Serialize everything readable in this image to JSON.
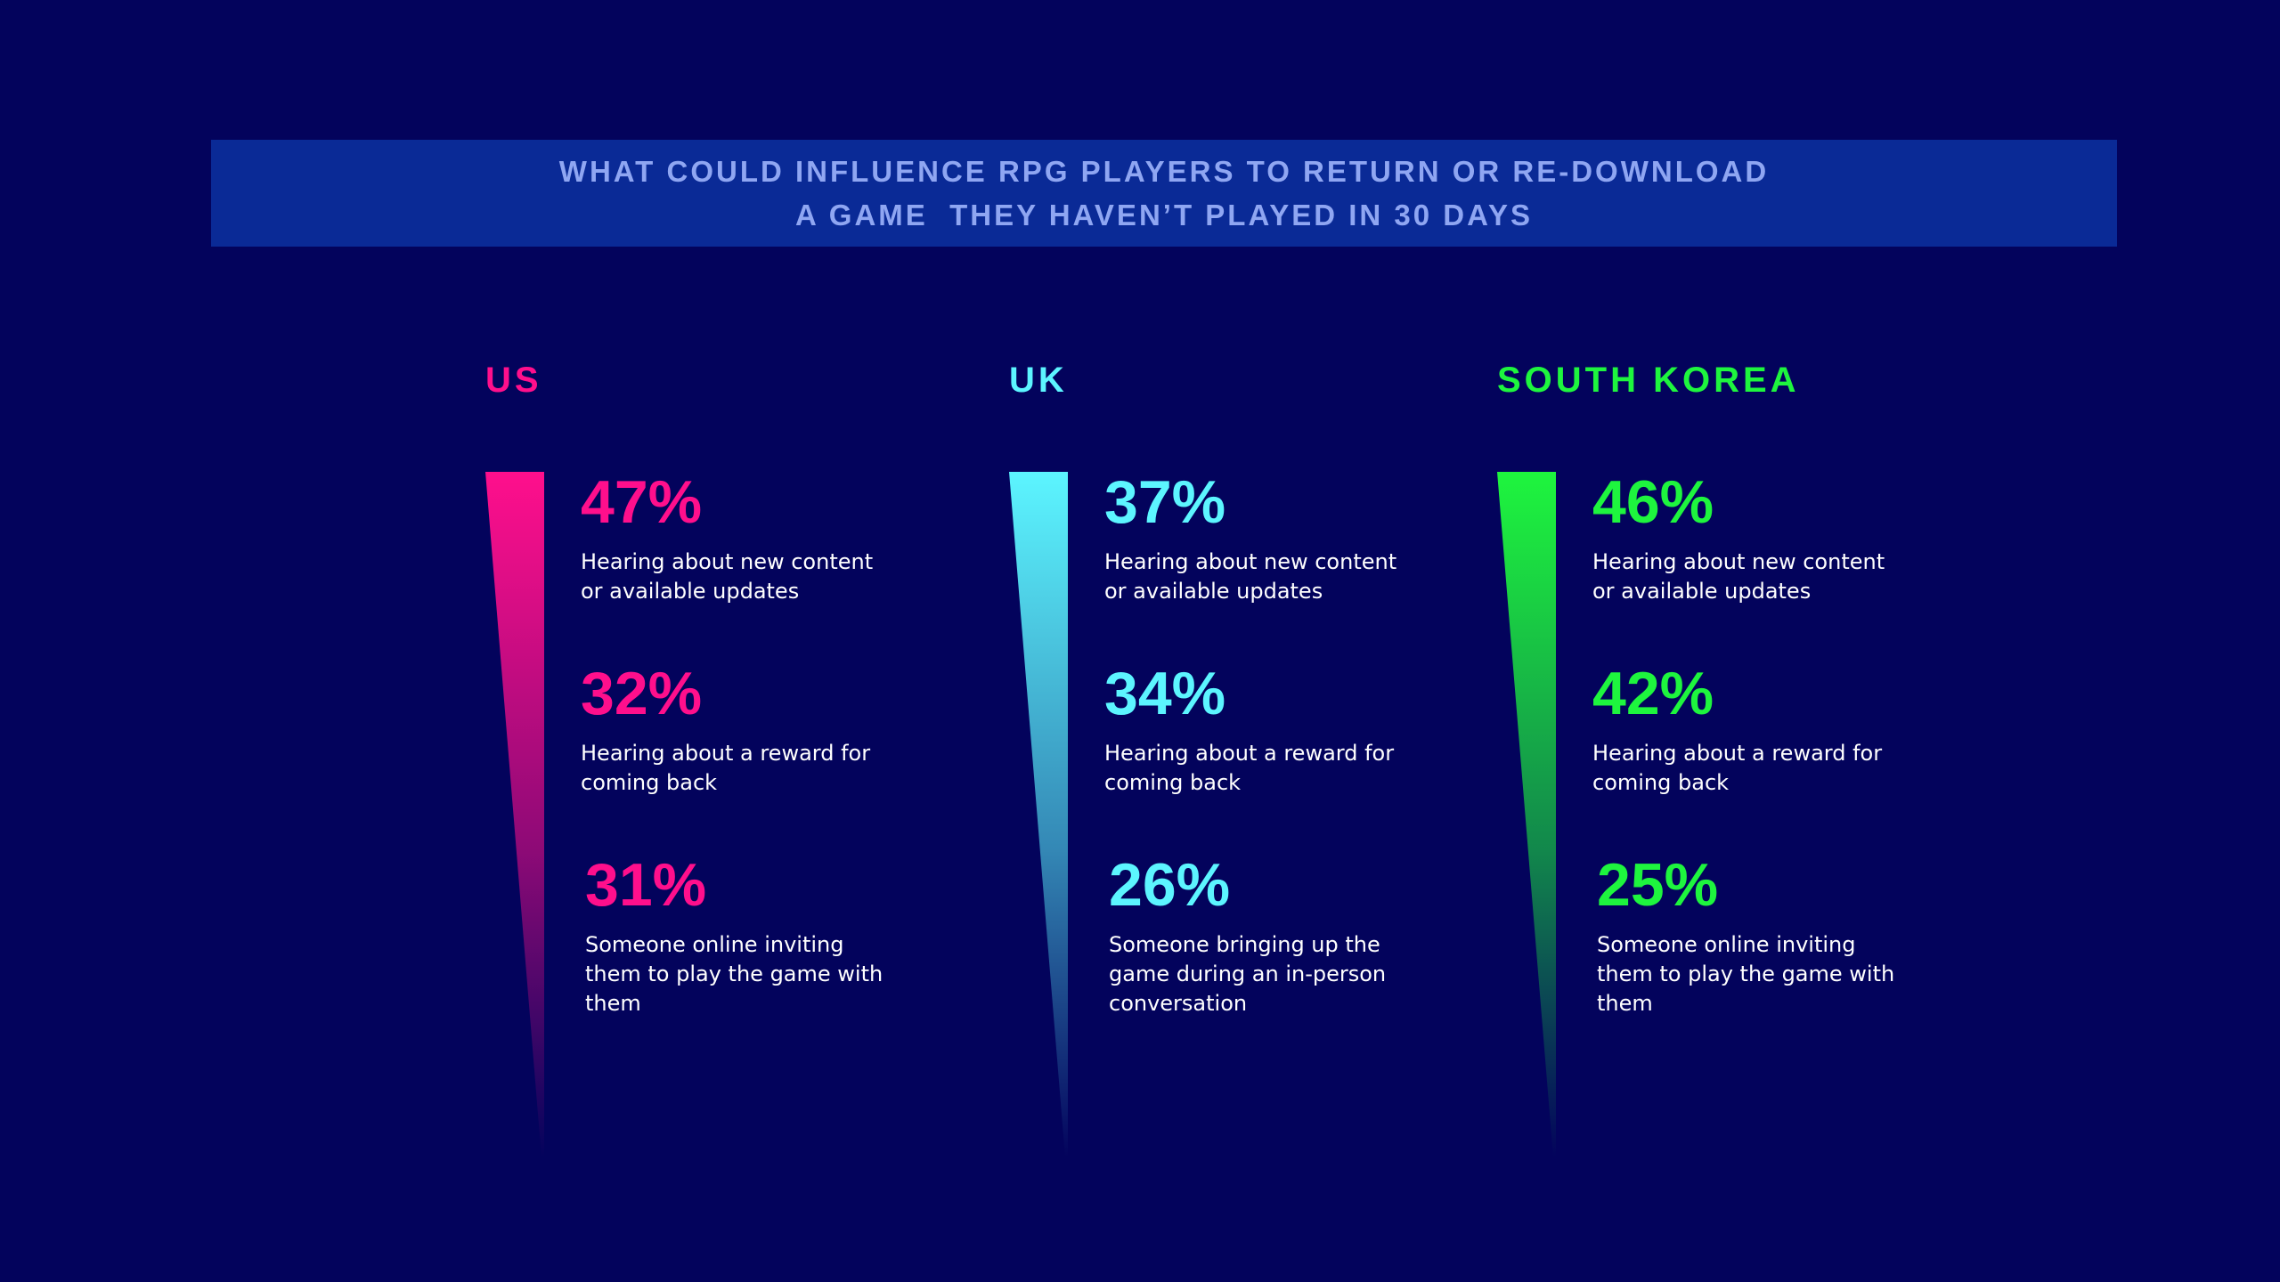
{
  "title": {
    "line1": "WHAT COULD INFLUENCE RPG PLAYERS TO RETURN OR RE-DOWNLOAD",
    "line2": "A GAME  THEY HAVEN’T PLAYED IN 30 DAYS"
  },
  "chart_data": {
    "type": "bar",
    "title": "WHAT COULD INFLUENCE RPG PLAYERS TO RETURN OR RE-DOWNLOAD A GAME  THEY HAVEN’T PLAYED IN 30 DAYS",
    "unit": "%",
    "groups": [
      {
        "name": "US",
        "color": "#ff0f8c",
        "items": [
          {
            "value": 47,
            "label": "47%",
            "desc": "Hearing about new content or available updates"
          },
          {
            "value": 32,
            "label": "32%",
            "desc": "Hearing about a reward for coming back"
          },
          {
            "value": 31,
            "label": "31%",
            "desc": "Someone online inviting them to play the game with them"
          }
        ]
      },
      {
        "name": "UK",
        "color": "#5cf5ff",
        "items": [
          {
            "value": 37,
            "label": "37%",
            "desc": "Hearing about new content or available updates"
          },
          {
            "value": 34,
            "label": "34%",
            "desc": "Hearing about a reward for coming back"
          },
          {
            "value": 26,
            "label": "26%",
            "desc": "Someone bringing up the game during an in-person conversation"
          }
        ]
      },
      {
        "name": "SOUTH KOREA",
        "color": "#1ef53e",
        "items": [
          {
            "value": 46,
            "label": "46%",
            "desc": "Hearing about new content or available updates"
          },
          {
            "value": 42,
            "label": "42%",
            "desc": "Hearing about a reward for coming back"
          },
          {
            "value": 25,
            "label": "25%",
            "desc": "Someone online inviting them to play the game with them"
          }
        ]
      }
    ]
  }
}
